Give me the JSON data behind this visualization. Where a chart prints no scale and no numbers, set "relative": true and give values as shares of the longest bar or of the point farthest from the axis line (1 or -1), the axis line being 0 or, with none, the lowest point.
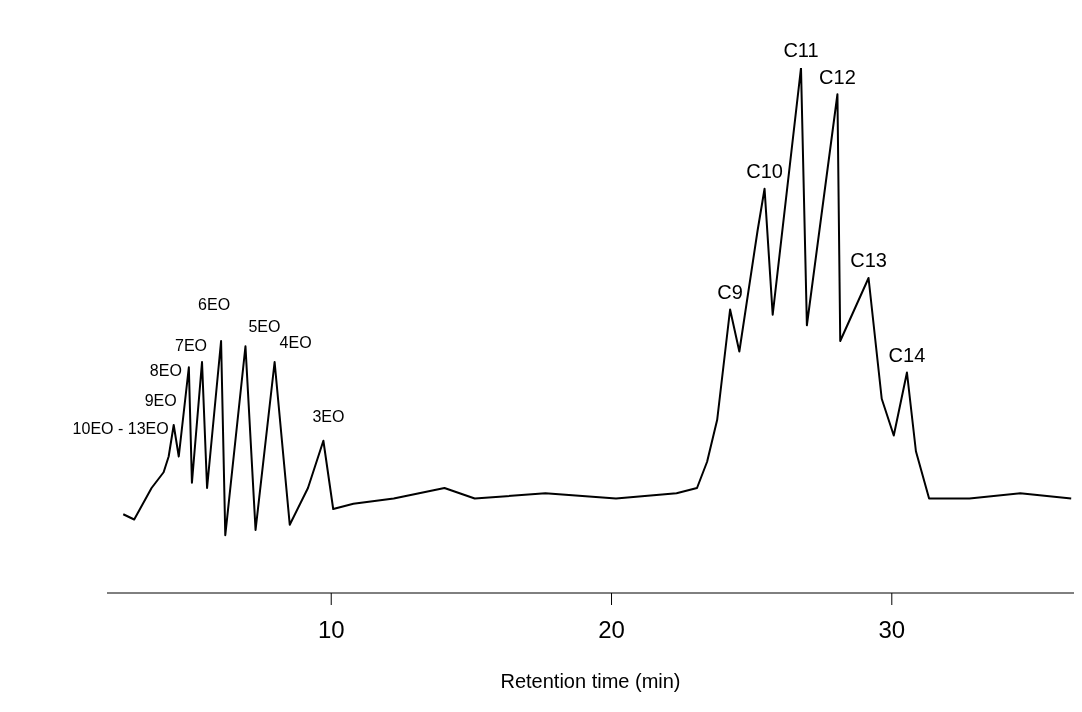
{
  "chart_data": {
    "type": "line",
    "relative": true,
    "xlabel": "Retention time (min)",
    "xlim": [
      2,
      36.5
    ],
    "xticks": [
      10,
      20,
      30
    ],
    "grid": false,
    "marker": "none",
    "line_style": "solid",
    "series": [
      {
        "color": "#000000",
        "x": [
          2.58,
          2.97,
          3.59,
          4.02,
          4.2,
          4.38,
          4.56,
          4.92,
          5.03,
          5.39,
          5.57,
          6.07,
          6.22,
          6.94,
          7.3,
          7.98,
          8.52,
          9.17,
          9.72,
          10.07,
          10.79,
          12.23,
          14.04,
          15.12,
          17.64,
          20.16,
          22.32,
          23.05,
          23.41,
          23.77,
          24.23,
          24.56,
          25.21,
          25.46,
          25.75,
          26.76,
          26.97,
          28.06,
          28.16,
          29.17,
          29.64,
          30.07,
          30.54,
          30.86,
          31.33,
          32.77,
          34.58,
          36.4
        ],
        "values": [
          0.15,
          0.14,
          0.2,
          0.23,
          0.26,
          0.32,
          0.26,
          0.43,
          0.21,
          0.44,
          0.2,
          0.48,
          0.11,
          0.47,
          0.12,
          0.44,
          0.13,
          0.2,
          0.29,
          0.16,
          0.17,
          0.18,
          0.2,
          0.18,
          0.19,
          0.18,
          0.19,
          0.2,
          0.25,
          0.33,
          0.54,
          0.46,
          0.69,
          0.77,
          0.53,
          1.0,
          0.51,
          0.95,
          0.48,
          0.6,
          0.37,
          0.3,
          0.42,
          0.27,
          0.18,
          0.18,
          0.19,
          0.18
        ]
      }
    ],
    "annotations": [
      {
        "text": "10EO - 13EO",
        "x": 4.2,
        "y": 0.26
      },
      {
        "text": "9EO",
        "x": 4.38,
        "y": 0.32
      },
      {
        "text": "8EO",
        "x": 4.92,
        "y": 0.43
      },
      {
        "text": "7EO",
        "x": 5.39,
        "y": 0.44
      },
      {
        "text": "6EO",
        "x": 6.07,
        "y": 0.48
      },
      {
        "text": "5EO",
        "x": 6.94,
        "y": 0.47
      },
      {
        "text": "4EO",
        "x": 7.98,
        "y": 0.44
      },
      {
        "text": "3EO",
        "x": 9.72,
        "y": 0.29
      },
      {
        "text": "C9",
        "x": 24.23,
        "y": 0.54
      },
      {
        "text": "C10",
        "x": 25.46,
        "y": 0.77
      },
      {
        "text": "C11",
        "x": 26.76,
        "y": 1.0
      },
      {
        "text": "C12",
        "x": 28.06,
        "y": 0.95
      },
      {
        "text": "C13",
        "x": 29.17,
        "y": 0.6
      },
      {
        "text": "C14",
        "x": 30.54,
        "y": 0.42
      }
    ]
  }
}
